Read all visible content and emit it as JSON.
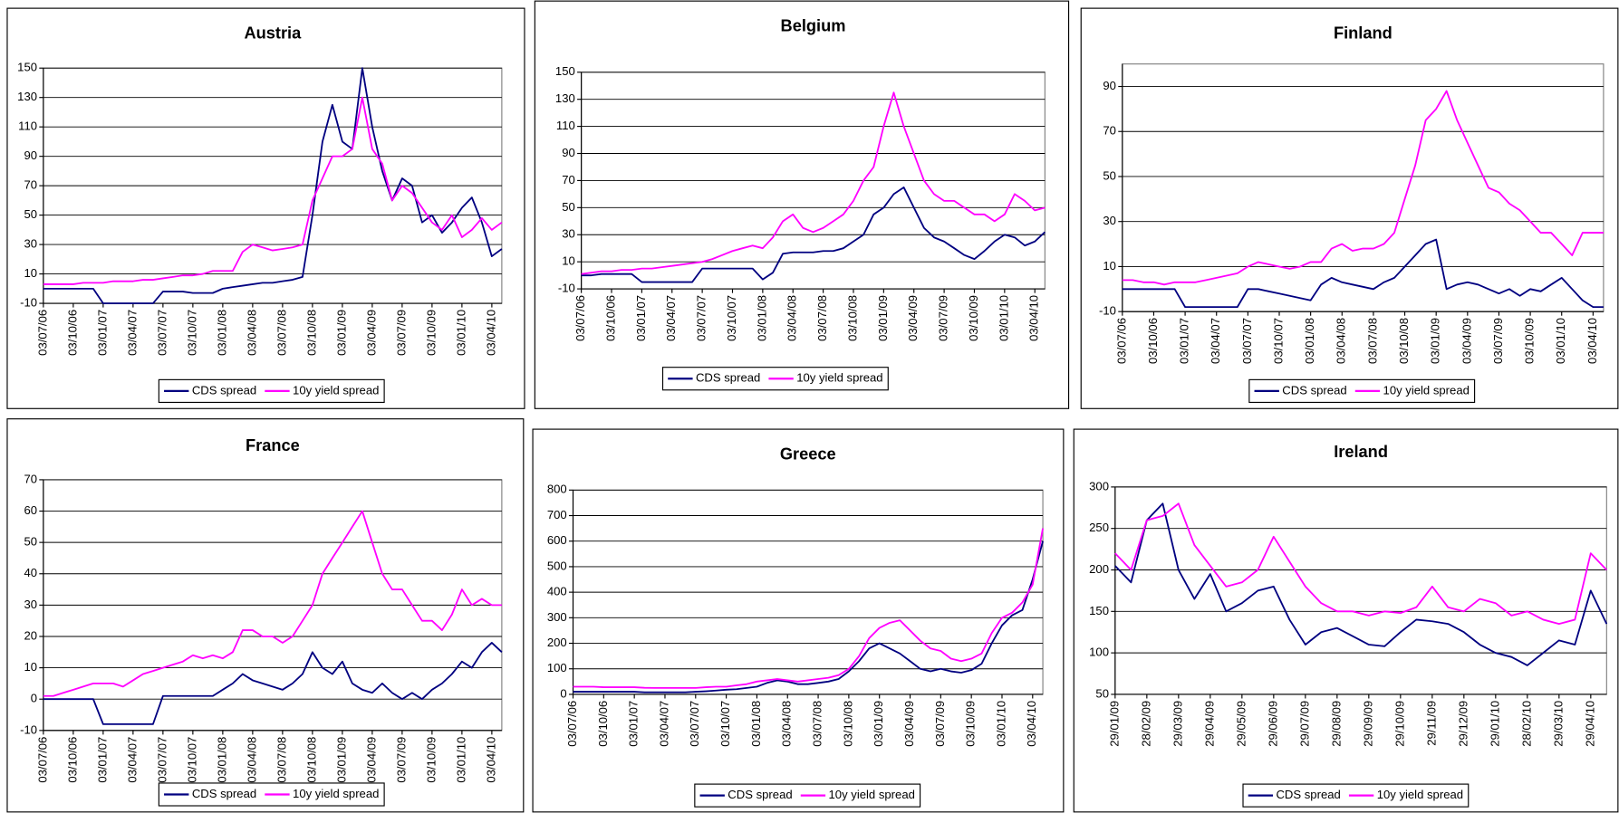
{
  "chart_data": [
    {
      "type": "line",
      "title": "Austria",
      "grid": true,
      "legend": "bottom",
      "categories": [
        "03/07/06",
        null,
        null,
        "03/10/06",
        null,
        null,
        "03/01/07",
        null,
        null,
        "03/04/07",
        null,
        null,
        "03/07/07",
        null,
        null,
        "03/10/07",
        null,
        null,
        "03/01/08",
        null,
        null,
        "03/04/08",
        null,
        null,
        "03/07/08",
        null,
        null,
        "03/10/08",
        null,
        null,
        "03/01/09",
        null,
        null,
        "03/04/09",
        null,
        null,
        "03/07/09",
        null,
        null,
        "03/10/09",
        null,
        null,
        "03/01/10",
        null,
        null,
        "03/04/10",
        null
      ],
      "series": [
        {
          "name": "CDS spread",
          "color": "#000080",
          "values": [
            0,
            0,
            0,
            0,
            0,
            0,
            -10,
            -10,
            -10,
            -10,
            -10,
            -10,
            -2,
            -2,
            -2,
            -3,
            -3,
            -3,
            0,
            1,
            2,
            3,
            4,
            4,
            5,
            6,
            8,
            50,
            100,
            125,
            100,
            95,
            150,
            110,
            80,
            60,
            75,
            70,
            45,
            50,
            38,
            45,
            55,
            62,
            45,
            22,
            27
          ]
        },
        {
          "name": "10y yield spread",
          "color": "#ff00ff",
          "values": [
            3,
            3,
            3,
            3,
            4,
            4,
            4,
            5,
            5,
            5,
            6,
            6,
            7,
            8,
            9,
            9,
            10,
            12,
            12,
            12,
            25,
            30,
            28,
            26,
            27,
            28,
            30,
            60,
            75,
            90,
            90,
            95,
            130,
            95,
            85,
            60,
            70,
            65,
            55,
            45,
            40,
            50,
            35,
            40,
            48,
            40,
            45
          ]
        }
      ],
      "ylim": [
        -10,
        150
      ],
      "yticks": [
        -10,
        10,
        30,
        50,
        70,
        90,
        110,
        130,
        150
      ]
    },
    {
      "type": "line",
      "title": "Belgium",
      "grid": true,
      "legend": "bottom",
      "categories": [
        "03/07/06",
        null,
        null,
        "03/10/06",
        null,
        null,
        "03/01/07",
        null,
        null,
        "03/04/07",
        null,
        null,
        "03/07/07",
        null,
        null,
        "03/10/07",
        null,
        null,
        "03/01/08",
        null,
        null,
        "03/04/08",
        null,
        null,
        "03/07/08",
        null,
        null,
        "03/10/08",
        null,
        null,
        "03/01/09",
        null,
        null,
        "03/04/09",
        null,
        null,
        "03/07/09",
        null,
        null,
        "03/10/09",
        null,
        null,
        "03/01/10",
        null,
        null,
        "03/04/10",
        null
      ],
      "series": [
        {
          "name": "CDS spread",
          "color": "#000080",
          "values": [
            0,
            0,
            1,
            1,
            1,
            1,
            -5,
            -5,
            -5,
            -5,
            -5,
            -5,
            5,
            5,
            5,
            5,
            5,
            5,
            -3,
            2,
            16,
            17,
            17,
            17,
            18,
            18,
            20,
            25,
            30,
            45,
            50,
            60,
            65,
            50,
            35,
            28,
            25,
            20,
            15,
            12,
            18,
            25,
            30,
            28,
            22,
            25,
            32
          ]
        },
        {
          "name": "10y yield spread",
          "color": "#ff00ff",
          "values": [
            1,
            2,
            3,
            3,
            4,
            4,
            5,
            5,
            6,
            7,
            8,
            9,
            10,
            12,
            15,
            18,
            20,
            22,
            20,
            28,
            40,
            45,
            35,
            32,
            35,
            40,
            45,
            55,
            70,
            80,
            110,
            135,
            110,
            90,
            70,
            60,
            55,
            55,
            50,
            45,
            45,
            40,
            45,
            60,
            55,
            48,
            50
          ]
        }
      ],
      "ylim": [
        -10,
        150
      ],
      "yticks": [
        -10,
        10,
        30,
        50,
        70,
        90,
        110,
        130,
        150
      ]
    },
    {
      "type": "line",
      "title": "Finland",
      "grid": true,
      "legend": "bottom",
      "categories": [
        "03/07/06",
        null,
        null,
        "03/10/06",
        null,
        null,
        "03/01/07",
        null,
        null,
        "03/04/07",
        null,
        null,
        "03/07/07",
        null,
        null,
        "03/10/07",
        null,
        null,
        "03/01/08",
        null,
        null,
        "03/04/08",
        null,
        null,
        "03/07/08",
        null,
        null,
        "03/10/08",
        null,
        null,
        "03/01/09",
        null,
        null,
        "03/04/09",
        null,
        null,
        "03/07/09",
        null,
        null,
        "03/10/09",
        null,
        null,
        "03/01/10",
        null,
        null,
        "03/04/10",
        null
      ],
      "series": [
        {
          "name": "CDS spread",
          "color": "#000080",
          "values": [
            0,
            0,
            0,
            0,
            0,
            0,
            -8,
            -8,
            -8,
            -8,
            -8,
            -8,
            0,
            0,
            -1,
            -2,
            -3,
            -4,
            -5,
            2,
            5,
            3,
            2,
            1,
            0,
            3,
            5,
            10,
            15,
            20,
            22,
            0,
            2,
            3,
            2,
            0,
            -2,
            0,
            -3,
            0,
            -1,
            2,
            5,
            0,
            -5,
            -8,
            -8
          ]
        },
        {
          "name": "10y yield spread",
          "color": "#ff00ff",
          "values": [
            4,
            4,
            3,
            3,
            2,
            3,
            3,
            3,
            4,
            5,
            6,
            7,
            10,
            12,
            11,
            10,
            9,
            10,
            12,
            12,
            18,
            20,
            17,
            18,
            18,
            20,
            25,
            40,
            55,
            75,
            80,
            88,
            75,
            65,
            55,
            45,
            43,
            38,
            35,
            30,
            25,
            25,
            20,
            15,
            25,
            25,
            25
          ]
        }
      ],
      "ylim": [
        -10,
        100
      ],
      "yticks": [
        -10,
        10,
        30,
        50,
        70,
        90
      ]
    },
    {
      "type": "line",
      "title": "France",
      "grid": true,
      "legend": "bottom",
      "categories": [
        "03/07/06",
        null,
        null,
        "03/10/06",
        null,
        null,
        "03/01/07",
        null,
        null,
        "03/04/07",
        null,
        null,
        "03/07/07",
        null,
        null,
        "03/10/07",
        null,
        null,
        "03/01/08",
        null,
        null,
        "03/04/08",
        null,
        null,
        "03/07/08",
        null,
        null,
        "03/10/08",
        null,
        null,
        "03/01/09",
        null,
        null,
        "03/04/09",
        null,
        null,
        "03/07/09",
        null,
        null,
        "03/10/09",
        null,
        null,
        "03/01/10",
        null,
        null,
        "03/04/10",
        null
      ],
      "series": [
        {
          "name": "CDS spread",
          "color": "#000080",
          "values": [
            0,
            0,
            0,
            0,
            0,
            0,
            -8,
            -8,
            -8,
            -8,
            -8,
            -8,
            1,
            1,
            1,
            1,
            1,
            1,
            3,
            5,
            8,
            6,
            5,
            4,
            3,
            5,
            8,
            15,
            10,
            8,
            12,
            5,
            3,
            2,
            5,
            2,
            0,
            2,
            0,
            3,
            5,
            8,
            12,
            10,
            15,
            18,
            15
          ]
        },
        {
          "name": "10y yield spread",
          "color": "#ff00ff",
          "values": [
            1,
            1,
            2,
            3,
            4,
            5,
            5,
            5,
            4,
            6,
            8,
            9,
            10,
            11,
            12,
            14,
            13,
            14,
            13,
            15,
            22,
            22,
            20,
            20,
            18,
            20,
            25,
            30,
            40,
            45,
            50,
            55,
            60,
            50,
            40,
            35,
            35,
            30,
            25,
            25,
            22,
            27,
            35,
            30,
            32,
            30,
            30
          ]
        }
      ],
      "ylim": [
        -10,
        70
      ],
      "yticks": [
        -10,
        0,
        10,
        20,
        30,
        40,
        50,
        60,
        70
      ]
    },
    {
      "type": "line",
      "title": "Greece",
      "grid": true,
      "legend": "bottom",
      "categories": [
        "03/07/06",
        null,
        null,
        "03/10/06",
        null,
        null,
        "03/01/07",
        null,
        null,
        "03/04/07",
        null,
        null,
        "03/07/07",
        null,
        null,
        "03/10/07",
        null,
        null,
        "03/01/08",
        null,
        null,
        "03/04/08",
        null,
        null,
        "03/07/08",
        null,
        null,
        "03/10/08",
        null,
        null,
        "03/01/09",
        null,
        null,
        "03/04/09",
        null,
        null,
        "03/07/09",
        null,
        null,
        "03/10/09",
        null,
        null,
        "03/01/10",
        null,
        null,
        "03/04/10",
        null
      ],
      "series": [
        {
          "name": "CDS spread",
          "color": "#000080",
          "values": [
            10,
            10,
            10,
            10,
            10,
            10,
            10,
            8,
            8,
            8,
            8,
            8,
            10,
            12,
            15,
            18,
            20,
            25,
            30,
            45,
            55,
            50,
            40,
            40,
            45,
            50,
            60,
            90,
            130,
            180,
            200,
            180,
            160,
            130,
            100,
            90,
            100,
            90,
            85,
            95,
            120,
            200,
            270,
            310,
            330,
            450,
            600
          ]
        },
        {
          "name": "10y yield spread",
          "color": "#ff00ff",
          "values": [
            30,
            30,
            30,
            28,
            28,
            28,
            28,
            26,
            25,
            25,
            25,
            25,
            25,
            28,
            30,
            30,
            35,
            40,
            50,
            55,
            60,
            55,
            50,
            55,
            60,
            65,
            75,
            100,
            150,
            220,
            260,
            280,
            290,
            250,
            210,
            180,
            170,
            140,
            130,
            140,
            160,
            240,
            300,
            320,
            360,
            430,
            650
          ]
        }
      ],
      "ylim": [
        0,
        800
      ],
      "yticks": [
        0,
        100,
        200,
        300,
        400,
        500,
        600,
        700,
        800
      ]
    },
    {
      "type": "line",
      "title": "Ireland",
      "grid": true,
      "legend": "bottom",
      "categories": [
        "29/01/09",
        null,
        "28/02/09",
        null,
        "29/03/09",
        null,
        "29/04/09",
        null,
        "29/05/09",
        null,
        "29/06/09",
        null,
        "29/07/09",
        null,
        "29/08/09",
        null,
        "29/09/09",
        null,
        "29/10/09",
        null,
        "29/11/09",
        null,
        "29/12/09",
        null,
        "29/01/10",
        null,
        "28/02/10",
        null,
        "29/03/10",
        null,
        "29/04/10",
        null
      ],
      "series": [
        {
          "name": "CDS spread",
          "color": "#000080",
          "values": [
            205,
            185,
            260,
            280,
            200,
            165,
            195,
            150,
            160,
            175,
            180,
            140,
            110,
            125,
            130,
            120,
            110,
            108,
            125,
            140,
            138,
            135,
            125,
            110,
            100,
            95,
            85,
            100,
            115,
            110,
            175,
            135
          ]
        },
        {
          "name": "10y yield spread",
          "color": "#ff00ff",
          "values": [
            220,
            200,
            260,
            265,
            280,
            230,
            205,
            180,
            185,
            200,
            240,
            210,
            180,
            160,
            150,
            150,
            145,
            150,
            148,
            155,
            180,
            155,
            150,
            165,
            160,
            145,
            150,
            140,
            135,
            140,
            220,
            200
          ]
        }
      ],
      "ylim": [
        50,
        300
      ],
      "yticks": [
        50,
        100,
        150,
        200,
        250,
        300
      ]
    }
  ]
}
